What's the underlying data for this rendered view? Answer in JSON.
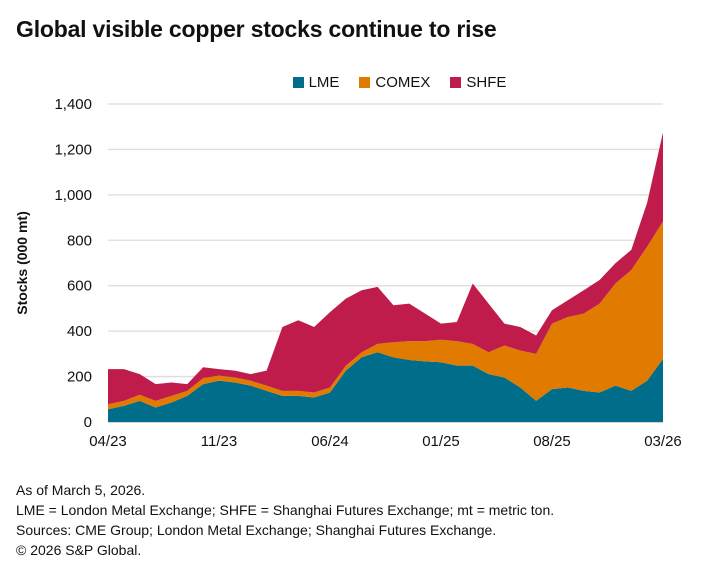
{
  "title": "Global visible copper stocks continue to rise",
  "notes": [
    "As of March 5, 2026.",
    "LME = London Metal Exchange; SHFE = Shanghai Futures Exchange; mt = metric ton.",
    "Sources: CME Group; London Metal Exchange; Shanghai Futures Exchange.",
    "© 2026 S&P Global."
  ],
  "chart_data": {
    "type": "area",
    "stacked": true,
    "title": "Global visible copper stocks continue to rise",
    "ylabel": "Stocks (000 mt)",
    "xlabel": "",
    "ylim": [
      0,
      1400
    ],
    "yticks": [
      "0",
      "200",
      "400",
      "600",
      "800",
      "1,000",
      "1,200",
      "1,400"
    ],
    "xticks": [
      "04/23",
      "11/23",
      "06/24",
      "01/25",
      "08/25",
      "03/26"
    ],
    "grid": true,
    "legend_position": "top",
    "x": [
      "04/23",
      "05/23",
      "06/23",
      "07/23",
      "08/23",
      "09/23",
      "10/23",
      "11/23",
      "12/23",
      "01/24",
      "02/24",
      "03/24",
      "04/24",
      "05/24",
      "06/24",
      "07/24",
      "08/24",
      "09/24",
      "10/24",
      "11/24",
      "12/24",
      "01/25",
      "02/25",
      "03/25",
      "04/25",
      "05/25",
      "06/25",
      "07/25",
      "08/25",
      "09/25",
      "10/25",
      "11/25",
      "12/25",
      "01/26",
      "02/26",
      "03/26"
    ],
    "series": [
      {
        "name": "LME",
        "color": "#006d8a",
        "values": [
          56,
          71,
          93,
          64,
          86,
          115,
          167,
          182,
          174,
          160,
          137,
          115,
          115,
          108,
          130,
          226,
          285,
          307,
          285,
          273,
          267,
          263,
          248,
          248,
          211,
          196,
          152,
          93,
          145,
          152,
          137,
          130,
          160,
          137,
          182,
          278
        ]
      },
      {
        "name": "COMEX",
        "color": "#e07b00",
        "values": [
          22,
          22,
          27,
          29,
          29,
          22,
          26,
          22,
          22,
          22,
          23,
          22,
          22,
          22,
          22,
          22,
          22,
          37,
          66,
          83,
          89,
          99,
          108,
          96,
          96,
          141,
          163,
          207,
          288,
          310,
          340,
          391,
          450,
          532,
          590,
          605
        ]
      },
      {
        "name": "SHFE",
        "color": "#bf1b4b",
        "values": [
          155,
          140,
          91,
          74,
          59,
          30,
          48,
          29,
          30,
          29,
          66,
          281,
          311,
          288,
          332,
          295,
          273,
          251,
          163,
          165,
          121,
          71,
          84,
          266,
          214,
          96,
          103,
          81,
          59,
          74,
          103,
          104,
          89,
          89,
          193,
          392
        ]
      }
    ]
  }
}
